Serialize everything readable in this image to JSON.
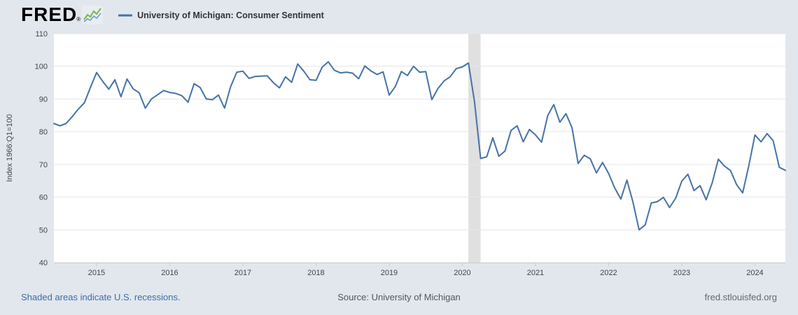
{
  "header": {
    "logo_text": "FRED",
    "registered_mark": "®",
    "series_title": "University of Michigan: Consumer Sentiment"
  },
  "footer": {
    "recession_note": "Shaded areas indicate U.S. recessions.",
    "source": "Source: University of Michigan",
    "site": "fred.stlouisfed.org"
  },
  "colors": {
    "page_background": "#e2e7ee",
    "plot_background": "#ffffff",
    "line": "#4572a7",
    "recession_band": "#e0e0e0",
    "gridline": "#e6e6e6",
    "axis": "#c9c9c9",
    "tick_text": "#434343",
    "footer_link": "#3c6ca8",
    "logo_green": "#7eb547",
    "logo_blue": "#6d9dc9"
  },
  "chart_data": {
    "type": "line",
    "title": "University of Michigan: Consumer Sentiment",
    "xlabel": "",
    "ylabel": "Index 1966:Q1=100",
    "ylim": [
      40,
      110
    ],
    "yticks": [
      40,
      50,
      60,
      70,
      80,
      90,
      100,
      110
    ],
    "xticks": [
      "2015",
      "2016",
      "2017",
      "2018",
      "2019",
      "2020",
      "2021",
      "2022",
      "2023",
      "2024"
    ],
    "x_start": "2014-06",
    "x_end": "2024-06",
    "frequency": "monthly",
    "grid": true,
    "legend_position": "top-left",
    "recession_bands": [
      {
        "start": "2020-02",
        "end": "2020-04"
      }
    ],
    "series": [
      {
        "name": "University of Michigan: Consumer Sentiment",
        "color": "#4572a7",
        "dates": [
          "2014-06",
          "2014-07",
          "2014-08",
          "2014-09",
          "2014-10",
          "2014-11",
          "2014-12",
          "2015-01",
          "2015-02",
          "2015-03",
          "2015-04",
          "2015-05",
          "2015-06",
          "2015-07",
          "2015-08",
          "2015-09",
          "2015-10",
          "2015-11",
          "2015-12",
          "2016-01",
          "2016-02",
          "2016-03",
          "2016-04",
          "2016-05",
          "2016-06",
          "2016-07",
          "2016-08",
          "2016-09",
          "2016-10",
          "2016-11",
          "2016-12",
          "2017-01",
          "2017-02",
          "2017-03",
          "2017-04",
          "2017-05",
          "2017-06",
          "2017-07",
          "2017-08",
          "2017-09",
          "2017-10",
          "2017-11",
          "2017-12",
          "2018-01",
          "2018-02",
          "2018-03",
          "2018-04",
          "2018-05",
          "2018-06",
          "2018-07",
          "2018-08",
          "2018-09",
          "2018-10",
          "2018-11",
          "2018-12",
          "2019-01",
          "2019-02",
          "2019-03",
          "2019-04",
          "2019-05",
          "2019-06",
          "2019-07",
          "2019-08",
          "2019-09",
          "2019-10",
          "2019-11",
          "2019-12",
          "2020-01",
          "2020-02",
          "2020-03",
          "2020-04",
          "2020-05",
          "2020-06",
          "2020-07",
          "2020-08",
          "2020-09",
          "2020-10",
          "2020-11",
          "2020-12",
          "2021-01",
          "2021-02",
          "2021-03",
          "2021-04",
          "2021-05",
          "2021-06",
          "2021-07",
          "2021-08",
          "2021-09",
          "2021-10",
          "2021-11",
          "2021-12",
          "2022-01",
          "2022-02",
          "2022-03",
          "2022-04",
          "2022-05",
          "2022-06",
          "2022-07",
          "2022-08",
          "2022-09",
          "2022-10",
          "2022-11",
          "2022-12",
          "2023-01",
          "2023-02",
          "2023-03",
          "2023-04",
          "2023-05",
          "2023-06",
          "2023-07",
          "2023-08",
          "2023-09",
          "2023-10",
          "2023-11",
          "2023-12",
          "2024-01",
          "2024-02",
          "2024-03",
          "2024-04",
          "2024-05",
          "2024-06"
        ],
        "values": [
          82.5,
          81.8,
          82.5,
          84.6,
          86.9,
          88.8,
          93.6,
          98.1,
          95.4,
          93.0,
          95.9,
          90.7,
          96.1,
          93.1,
          91.9,
          87.2,
          90.0,
          91.3,
          92.6,
          92.0,
          91.7,
          91.0,
          89.0,
          94.7,
          93.5,
          90.0,
          89.8,
          91.2,
          87.2,
          93.8,
          98.2,
          98.5,
          96.3,
          96.9,
          97.0,
          97.1,
          95.0,
          93.4,
          96.8,
          95.1,
          100.7,
          98.5,
          95.9,
          95.7,
          99.7,
          101.4,
          98.8,
          98.0,
          98.2,
          97.9,
          96.2,
          100.1,
          98.6,
          97.5,
          98.3,
          91.2,
          93.8,
          98.4,
          97.2,
          100.0,
          98.2,
          98.4,
          89.8,
          93.2,
          95.5,
          96.8,
          99.3,
          99.8,
          101.0,
          89.1,
          71.8,
          72.3,
          78.1,
          72.5,
          74.1,
          80.4,
          81.8,
          76.9,
          80.7,
          79.0,
          76.8,
          84.9,
          88.3,
          82.9,
          85.5,
          81.2,
          70.3,
          72.8,
          71.7,
          67.4,
          70.6,
          67.2,
          62.8,
          59.4,
          65.2,
          58.4,
          50.0,
          51.5,
          58.2,
          58.6,
          59.9,
          56.8,
          59.7,
          64.9,
          67.0,
          62.0,
          63.5,
          59.2,
          64.4,
          71.6,
          69.5,
          68.1,
          63.8,
          61.3,
          69.7,
          79.0,
          76.9,
          79.4,
          77.2,
          69.1,
          68.2
        ]
      }
    ]
  }
}
